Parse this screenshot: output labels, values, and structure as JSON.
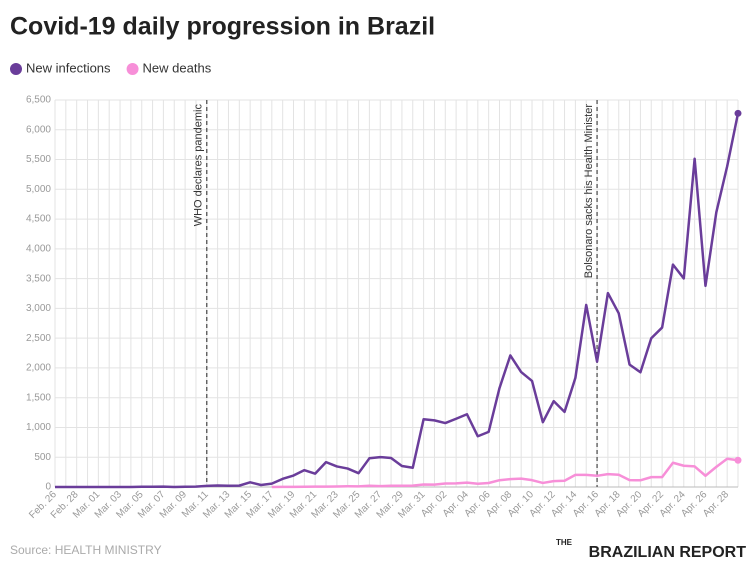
{
  "chart_data": {
    "type": "line",
    "title": "Covid-19 daily progression in Brazil",
    "source": "Source: HEALTH MINISTRY",
    "brand": {
      "top": "THE",
      "name": "BRAZILIAN REPORT"
    },
    "categories": [
      "Feb. 26",
      null,
      "Feb. 28",
      null,
      "Mar. 01",
      null,
      "Mar. 03",
      null,
      "Mar. 05",
      null,
      "Mar. 07",
      null,
      "Mar. 09",
      null,
      "Mar. 11",
      null,
      "Mar. 13",
      null,
      "Mar. 15",
      null,
      "Mar. 17",
      null,
      "Mar. 19",
      null,
      "Mar. 21",
      null,
      "Mar. 23",
      null,
      "Mar. 25",
      null,
      "Mar. 27",
      null,
      "Mar. 29",
      null,
      "Mar. 31",
      null,
      "Apr. 02",
      null,
      "Apr. 04",
      null,
      "Apr. 06",
      null,
      "Apr. 08",
      null,
      "Apr. 10",
      null,
      "Apr. 12",
      null,
      "Apr. 14",
      null,
      "Apr. 16",
      null,
      "Apr. 18",
      null,
      "Apr. 20",
      null,
      "Apr. 22",
      null,
      "Apr. 24",
      null,
      "Apr. 26",
      null,
      "Apr. 28",
      null
    ],
    "series": [
      {
        "name": "New infections",
        "color": "#6a3d9a",
        "values": [
          1,
          0,
          0,
          1,
          1,
          0,
          0,
          1,
          5,
          5,
          6,
          0,
          5,
          6,
          18,
          25,
          21,
          23,
          79,
          34,
          57,
          137,
          193,
          283,
          224,
          418,
          345,
          310,
          232,
          482,
          502,
          487,
          352,
          323,
          1138,
          1119,
          1074,
          1146,
          1222,
          852,
          926,
          1661,
          2210,
          1930,
          1781,
          1089,
          1442,
          1261,
          1832,
          3058,
          2105,
          3257,
          2917,
          2055,
          1927,
          2498,
          2678,
          3735,
          3503,
          5514,
          3379,
          4613,
          5385,
          6276
        ]
      },
      {
        "name": "New deaths",
        "color": "#f78fd8",
        "values": [
          null,
          null,
          null,
          null,
          null,
          null,
          null,
          null,
          null,
          null,
          null,
          null,
          null,
          null,
          null,
          null,
          null,
          null,
          null,
          null,
          1,
          2,
          3,
          5,
          7,
          7,
          9,
          12,
          11,
          20,
          15,
          22,
          22,
          23,
          42,
          40,
          58,
          60,
          73,
          54,
          67,
          114,
          133,
          141,
          115,
          68,
          99,
          105,
          204,
          204,
          188,
          217,
          206,
          115,
          113,
          166,
          165,
          407,
          357,
          346,
          189,
          338,
          474,
          449
        ]
      }
    ],
    "ylim": [
      0,
      6500
    ],
    "yticks": [
      0,
      500,
      {
        "value": 1000,
        "label": "1,000"
      },
      {
        "value": 1500,
        "label": "1,500"
      },
      {
        "value": 2000,
        "label": "2,000"
      },
      {
        "value": 2500,
        "label": "2,500"
      },
      {
        "value": 3000,
        "label": "3,000"
      },
      {
        "value": 3500,
        "label": "3,500"
      },
      {
        "value": 4000,
        "label": "4,000"
      },
      {
        "value": 4500,
        "label": "4,500"
      },
      {
        "value": 5000,
        "label": "5,000"
      },
      {
        "value": 5500,
        "label": "5,500"
      },
      {
        "value": 6000,
        "label": "6,000"
      },
      {
        "value": 6500,
        "label": "6,500"
      }
    ],
    "grid": true,
    "legend": "top-left",
    "annotations": [
      {
        "x_index": 14,
        "label": "WHO declares pandemic"
      },
      {
        "x_index": 50,
        "label": "Bolsonaro sacks his Health Minister"
      }
    ]
  }
}
